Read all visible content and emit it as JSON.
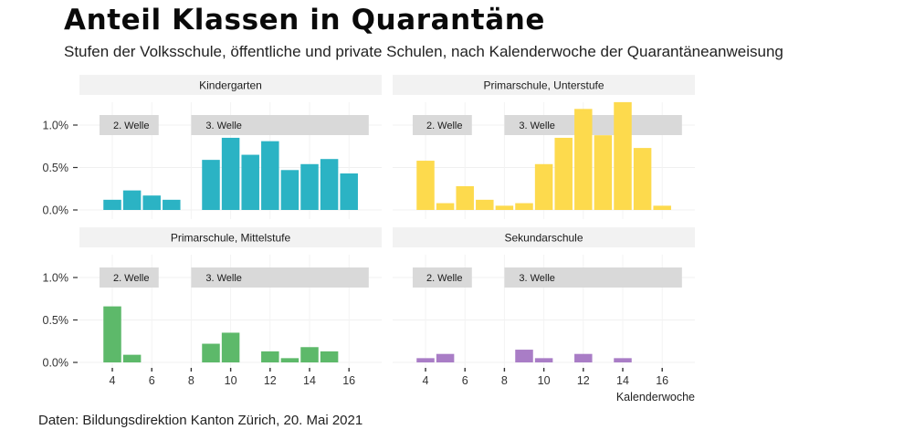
{
  "header": {
    "title": "Anteil Klassen in Quarantäne",
    "subtitle": "Stufen der Volksschule, öffentliche und private Schulen, nach Kalenderwoche der Quarantäneanweisung"
  },
  "footer": {
    "caption": "Daten: Bildungsdirektion Kanton Zürich, 20. Mai 2021"
  },
  "chart_data": {
    "type": "bar",
    "layout": "facet-2x2",
    "title": "Anteil Klassen in Quarantäne",
    "subtitle": "Stufen der Volksschule, öffentliche und private Schulen, nach Kalenderwoche der Quarantäneanweisung",
    "xlabel": "Kalenderwoche",
    "ylabel": "",
    "x_ticks": [
      4,
      6,
      8,
      10,
      12,
      14,
      16
    ],
    "y_ticks": [
      0.0,
      0.5,
      1.0
    ],
    "y_tick_labels": [
      "0.0%",
      "0.5%",
      "1.0%"
    ],
    "ylim": [
      0,
      1.3
    ],
    "xlim": [
      3,
      17.3
    ],
    "grid": true,
    "annotations": [
      {
        "label": "2. Welle",
        "x_start": 3.35,
        "x_end": 6.35
      },
      {
        "label": "3. Welle",
        "x_start": 8.0,
        "x_end": 17.0
      }
    ],
    "panels": [
      {
        "name": "Kindergarten",
        "color": "#2BB3C4",
        "x": [
          4,
          5,
          6,
          7,
          9,
          10,
          11,
          12,
          13,
          14,
          15,
          16
        ],
        "values": [
          0.12,
          0.23,
          0.17,
          0.12,
          0.59,
          0.85,
          0.65,
          0.81,
          0.47,
          0.54,
          0.6,
          0.43
        ]
      },
      {
        "name": "Primarschule, Unterstufe",
        "color": "#FDDA4D",
        "x": [
          4,
          5,
          6,
          7,
          8,
          9,
          10,
          11,
          12,
          13,
          14,
          15,
          16
        ],
        "values": [
          0.58,
          0.08,
          0.28,
          0.12,
          0.05,
          0.08,
          0.54,
          0.85,
          1.19,
          0.88,
          1.27,
          0.73,
          0.05
        ]
      },
      {
        "name": "Primarschule, Mittelstufe",
        "color": "#5DB96A",
        "x": [
          4,
          5,
          9,
          10,
          12,
          13,
          14,
          15
        ],
        "values": [
          0.66,
          0.09,
          0.22,
          0.35,
          0.13,
          0.05,
          0.18,
          0.13
        ]
      },
      {
        "name": "Sekundarschule",
        "color": "#A97DC6",
        "x": [
          4,
          5,
          9,
          10,
          12,
          14
        ],
        "values": [
          0.05,
          0.1,
          0.15,
          0.05,
          0.1,
          0.05
        ]
      }
    ]
  }
}
